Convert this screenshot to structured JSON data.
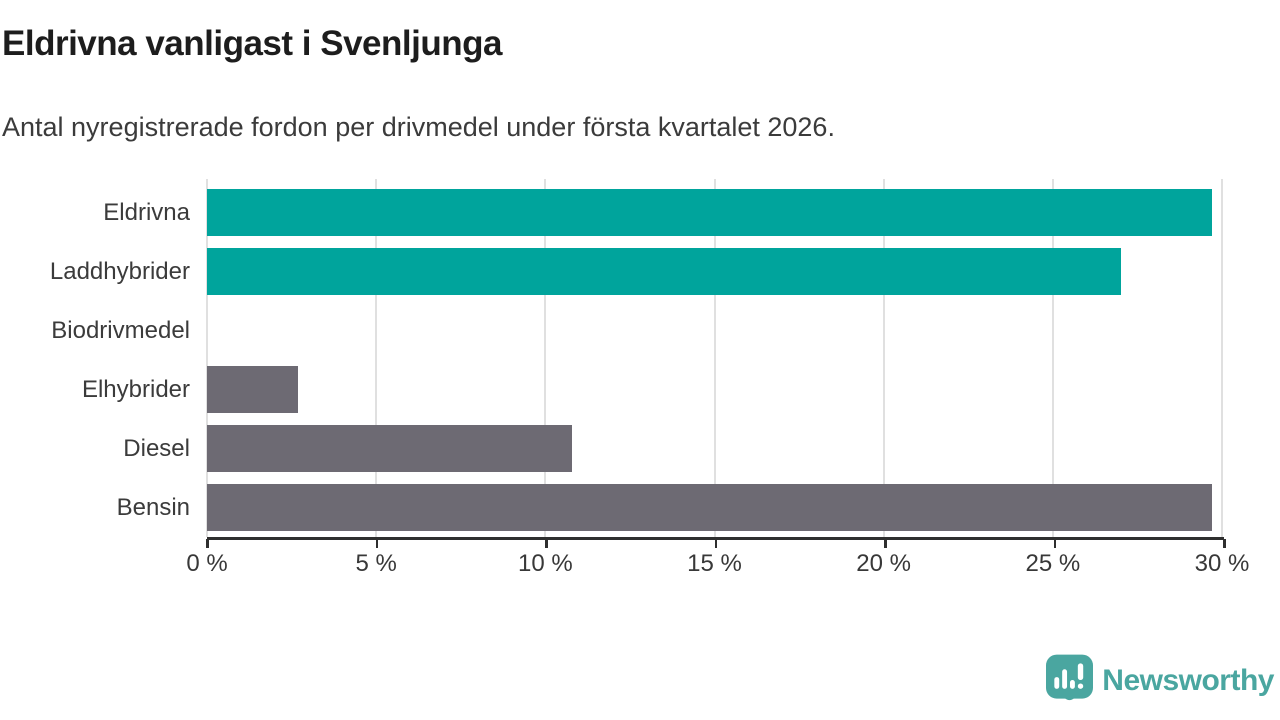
{
  "chart": {
    "title": "Eldrivna vanligast i Svenljunga",
    "subtitle": "Antal nyregistrerade fordon per drivmedel under första kvartalet 2026."
  },
  "chart_data": {
    "type": "bar",
    "orientation": "horizontal",
    "title": "Eldrivna vanligast i Svenljunga",
    "subtitle": "Antal nyregistrerade fordon per drivmedel under första kvartalet 2026.",
    "categories": [
      "Eldrivna",
      "Laddhybrider",
      "Biodrivmedel",
      "Elhybrider",
      "Diesel",
      "Bensin"
    ],
    "values": [
      29.7,
      27.0,
      0,
      2.7,
      10.8,
      29.7
    ],
    "unit": "%",
    "bar_colors": [
      "#00a49c",
      "#00a49c",
      "#6d6a73",
      "#6d6a73",
      "#6d6a73",
      "#6d6a73"
    ],
    "xlabel": "",
    "ylabel": "",
    "xlim": [
      0,
      30
    ],
    "x_ticks": [
      0,
      5,
      10,
      15,
      20,
      25,
      30
    ],
    "x_tick_labels": [
      "0 %",
      "5 %",
      "10 %",
      "15 %",
      "20 %",
      "25 %",
      "30 %"
    ],
    "grid": "vertical-light",
    "legend": "none"
  },
  "footer": {
    "brand": "Newsworthy"
  },
  "colors": {
    "accent_teal": "#00a49c",
    "bar_gray": "#6d6a73",
    "logo_teal": "#4aa6a0",
    "gridline": "#e0e0e0",
    "axis": "#2f2f2f",
    "title_text": "#1d1d1d",
    "body_text": "#3b3b3b"
  }
}
